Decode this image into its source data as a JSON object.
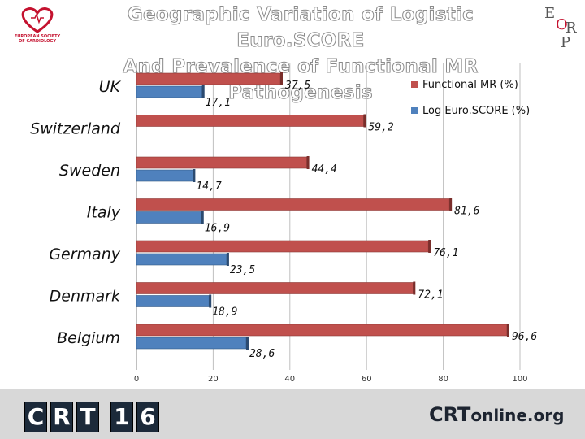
{
  "title_line1": "Geographic Variation of Logistic Euro.SCORE",
  "title_line2": "And Prevalence of Functional MR Pathogenesis",
  "logos": {
    "esc_text": "EUROPEAN SOCIETY OF CARDIOLOGY",
    "eorp": [
      "E",
      "O",
      "R",
      "P"
    ],
    "crt_letters": [
      "C",
      "R",
      "T",
      "1",
      "6"
    ],
    "crtonline_main": "CRT",
    "crtonline_suffix": "online.org"
  },
  "colors": {
    "functional_mr": "#c0504d",
    "log_euroscore": "#4f81bd",
    "grid": "#bfbfbf"
  },
  "chart_data": {
    "type": "bar",
    "orientation": "horizontal",
    "categories": [
      "UK",
      "Switzerland",
      "Sweden",
      "Italy",
      "Germany",
      "Denmark",
      "Belgium"
    ],
    "series": [
      {
        "name": "Functional MR (%)",
        "values": [
          37.5,
          59.2,
          44.4,
          81.6,
          76.1,
          72.1,
          96.6
        ],
        "labels": [
          "37,5",
          "59,2",
          "44,4",
          "81,6",
          "76,1",
          "72,1",
          "96,6"
        ]
      },
      {
        "name": "Log Euro.SCORE (%)",
        "values": [
          17.1,
          null,
          14.7,
          16.9,
          23.5,
          18.9,
          28.6
        ],
        "labels": [
          "17,1",
          "",
          "14,7",
          "16,9",
          "23,5",
          "18,9",
          "28,6"
        ]
      }
    ],
    "xlim": [
      0,
      100
    ],
    "xticks": [
      0,
      20,
      40,
      60,
      80,
      100
    ],
    "grid": true,
    "legend_position": "top-right",
    "title": "",
    "xlabel": "",
    "ylabel": ""
  }
}
